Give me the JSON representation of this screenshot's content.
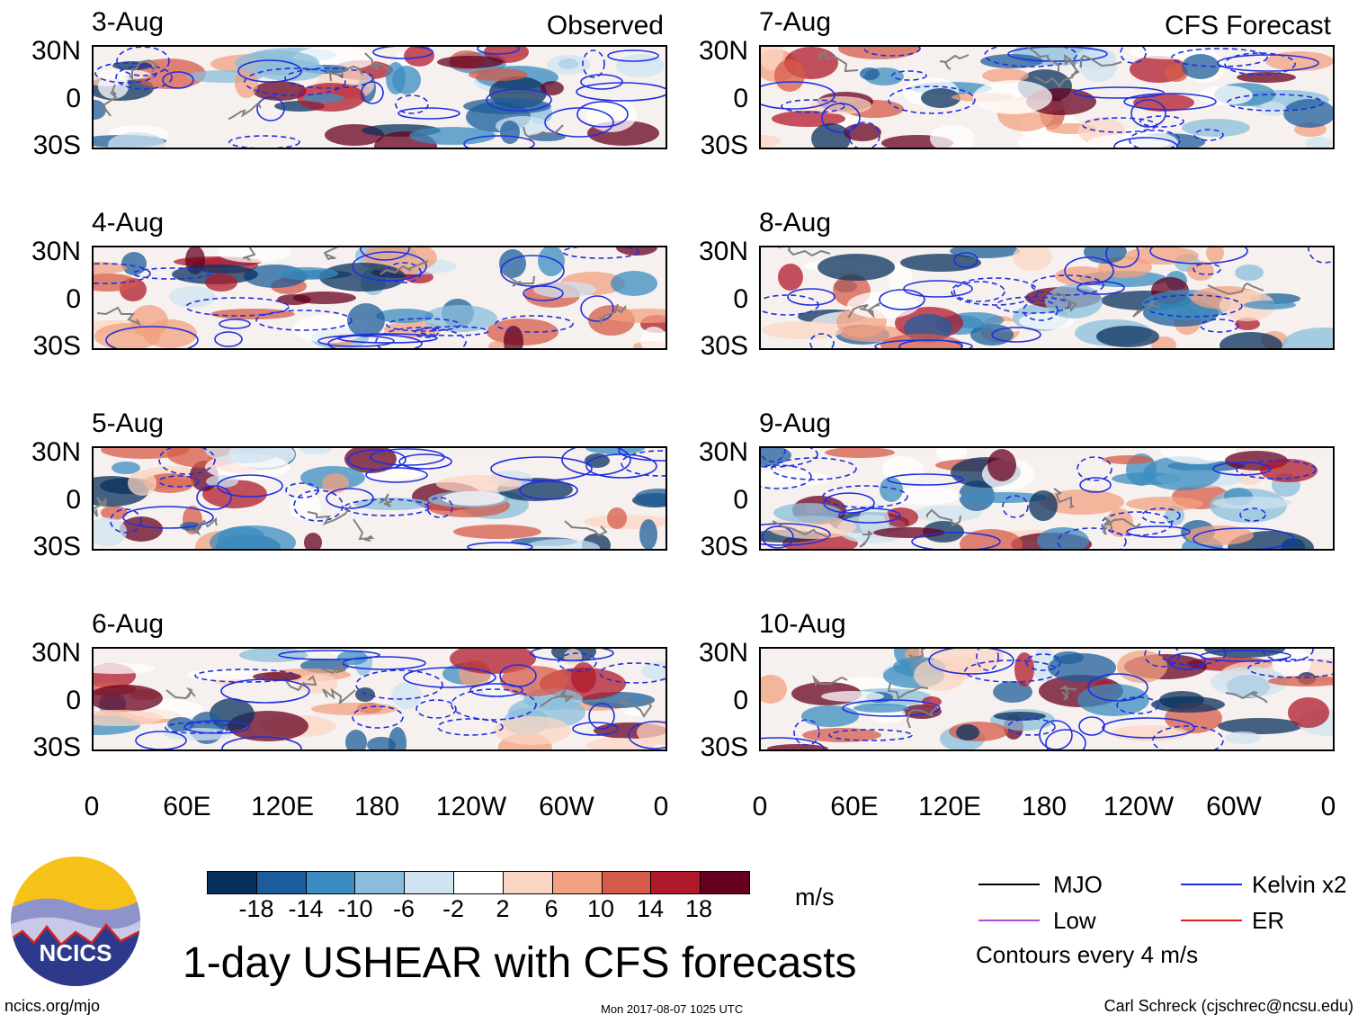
{
  "panels": [
    {
      "date": "3-Aug",
      "tag": "Observed"
    },
    {
      "date": "4-Aug",
      "tag": ""
    },
    {
      "date": "5-Aug",
      "tag": ""
    },
    {
      "date": "6-Aug",
      "tag": ""
    },
    {
      "date": "7-Aug",
      "tag": "CFS Forecast"
    },
    {
      "date": "8-Aug",
      "tag": ""
    },
    {
      "date": "9-Aug",
      "tag": ""
    },
    {
      "date": "10-Aug",
      "tag": ""
    }
  ],
  "lat_labels": [
    "30N",
    "0",
    "30S"
  ],
  "lon_labels": [
    "0",
    "60E",
    "120E",
    "180",
    "120W",
    "60W",
    "0"
  ],
  "colorbar": {
    "labels": [
      "-18",
      "-14",
      "-10",
      "-6",
      "-2",
      "2",
      "6",
      "10",
      "14",
      "18"
    ],
    "colors": [
      "#08305e",
      "#1d5d9b",
      "#3b8cc0",
      "#89bddb",
      "#cfe3f0",
      "#ffffff",
      "#fbd5c3",
      "#f2a07f",
      "#d55b48",
      "#b0182b",
      "#67001f"
    ],
    "unit": "m/s"
  },
  "legend": {
    "items": [
      {
        "label": "MJO",
        "color": "#000000"
      },
      {
        "label": "Kelvin x2",
        "color": "#1f2fe0"
      },
      {
        "label": "Low",
        "color": "#b04ccf"
      },
      {
        "label": "ER",
        "color": "#e21f1f"
      }
    ],
    "contour_note": "Contours every 4 m/s"
  },
  "title": "1-day USHEAR with CFS forecasts",
  "logo_text": "NCICS",
  "footer": {
    "left": "ncics.org/mjo",
    "center": "Mon 2017-08-07 1025 UTC",
    "right": "Carl Schreck (cjschrec@ncsu.edu)"
  }
}
